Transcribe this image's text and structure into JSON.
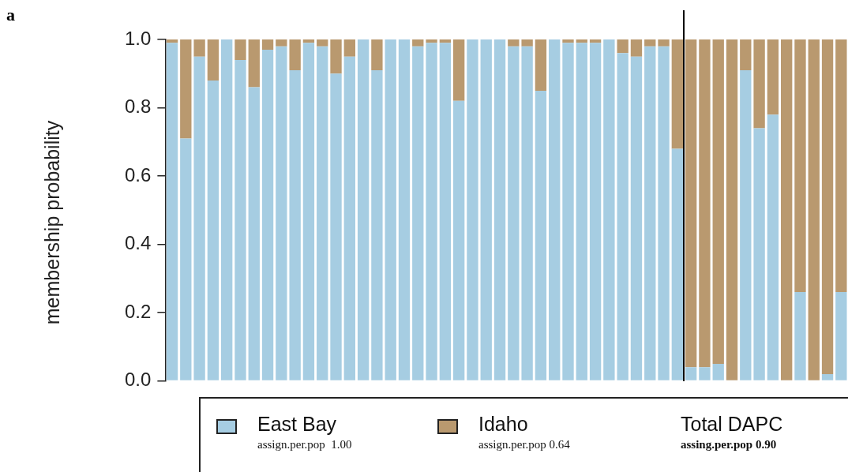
{
  "chart_data": {
    "type": "bar",
    "stacked": true,
    "ylabel": "membership probability",
    "categories": [
      null,
      null,
      null,
      null,
      null,
      null,
      null,
      null,
      null,
      null,
      null,
      null,
      null,
      null,
      null,
      null,
      null,
      null,
      null,
      null,
      null,
      null,
      null,
      null,
      null,
      null,
      null,
      null,
      null,
      null,
      null,
      null,
      null,
      null,
      null,
      null,
      null,
      null,
      null,
      null,
      null,
      null,
      null,
      null,
      null,
      null,
      null,
      null,
      null,
      null
    ],
    "series": [
      {
        "name": "East Bay",
        "color": "#a6cde2",
        "values": [
          0.99,
          0.71,
          0.95,
          0.88,
          1.0,
          0.94,
          0.86,
          0.97,
          0.98,
          0.91,
          0.99,
          0.98,
          0.9,
          0.95,
          1.0,
          0.91,
          1.0,
          1.0,
          0.98,
          0.99,
          0.99,
          0.82,
          1.0,
          1.0,
          1.0,
          0.98,
          0.98,
          0.85,
          1.0,
          0.99,
          0.99,
          0.99,
          1.0,
          0.96,
          0.95,
          0.98,
          0.98,
          0.68,
          0.04,
          0.04,
          0.05,
          0.0,
          0.91,
          0.74,
          0.78,
          0.0,
          0.26,
          0.0,
          0.02,
          0.26
        ]
      },
      {
        "name": "Idaho",
        "color": "#b9996f",
        "values": [
          0.01,
          0.29,
          0.05,
          0.12,
          0.0,
          0.06,
          0.14,
          0.03,
          0.02,
          0.09,
          0.01,
          0.02,
          0.1,
          0.05,
          0.0,
          0.09,
          0.0,
          0.0,
          0.02,
          0.01,
          0.01,
          0.18,
          0.0,
          0.0,
          0.0,
          0.02,
          0.02,
          0.15,
          0.0,
          0.01,
          0.01,
          0.01,
          0.0,
          0.04,
          0.05,
          0.02,
          0.02,
          0.32,
          0.96,
          0.96,
          0.95,
          1.0,
          0.09,
          0.26,
          0.22,
          1.0,
          0.74,
          1.0,
          0.98,
          0.74
        ]
      }
    ],
    "ylim": [
      0,
      1
    ],
    "yticks": [
      {
        "value": 0,
        "label": "0.0"
      },
      {
        "value": 0.2,
        "label": "0.2"
      },
      {
        "value": 0.4,
        "label": "0.4"
      },
      {
        "value": 0.6,
        "label": "0.6"
      },
      {
        "value": 0.8,
        "label": "0.8"
      },
      {
        "value": 1,
        "label": "1.0"
      }
    ],
    "grid": false,
    "legend": "bottom",
    "annotations": [
      "a",
      "assign.per.pop  1.00",
      "assign.per.pop 0.64",
      "Total DAPC",
      "assing.per.pop 0.90"
    ]
  }
}
